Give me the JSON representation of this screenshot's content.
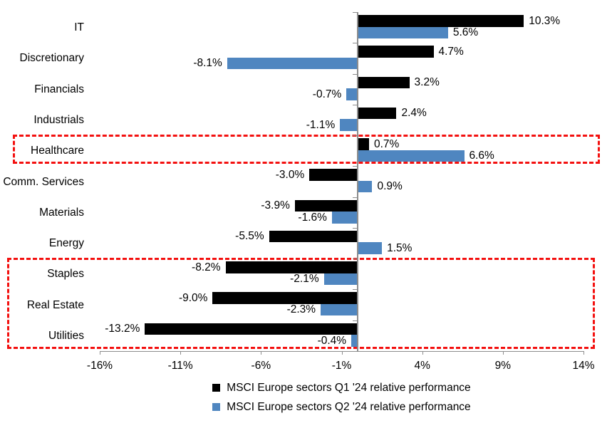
{
  "chart_data": {
    "type": "bar",
    "orientation": "horizontal",
    "categories": [
      "IT",
      "Discretionary",
      "Financials",
      "Industrials",
      "Healthcare",
      "Comm. Services",
      "Materials",
      "Energy",
      "Staples",
      "Real Estate",
      "Utilities"
    ],
    "series": [
      {
        "name": "MSCI Europe sectors Q1 '24 relative performance",
        "color": "#000000",
        "values": [
          10.3,
          4.7,
          3.2,
          2.4,
          0.7,
          -3.0,
          -3.9,
          -5.5,
          -8.2,
          -9.0,
          -13.2
        ]
      },
      {
        "name": "MSCI Europe sectors Q2 '24 relative performance",
        "color": "#4f86c0",
        "values": [
          5.6,
          -8.1,
          -0.7,
          -1.1,
          6.6,
          0.9,
          -1.6,
          1.5,
          -2.1,
          -2.3,
          -0.4
        ]
      }
    ],
    "value_suffix": "%",
    "value_decimals": 1,
    "xlim": [
      -16,
      14
    ],
    "x_ticks": [
      -16,
      -11,
      -6,
      -1,
      4,
      9,
      14
    ],
    "x_tick_labels": [
      "-16%",
      "-11%",
      "-6%",
      "-1%",
      "4%",
      "9%",
      "14%"
    ],
    "grid": false,
    "legend_position": "bottom",
    "axis_color": "#8c8c8c",
    "text_color": "#000000",
    "highlight_color": "#f3100f",
    "highlights": [
      {
        "name": "highlight-box-healthcare",
        "row_start": 4,
        "row_end": 4
      },
      {
        "name": "highlight-box-staples-realestate-utilities",
        "row_start": 8,
        "row_end": 10
      }
    ]
  }
}
